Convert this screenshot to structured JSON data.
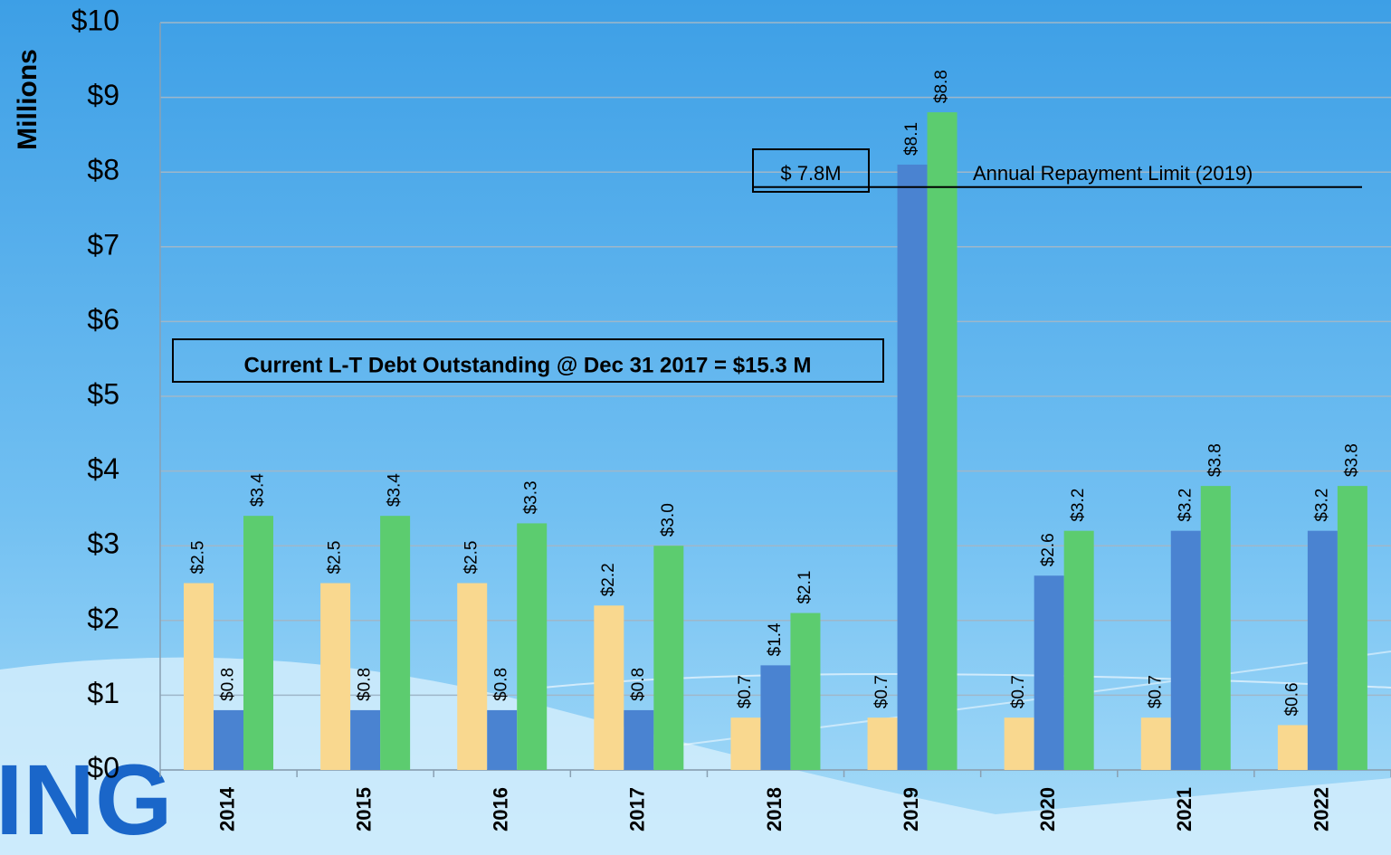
{
  "chart_data": {
    "type": "bar",
    "y_axis_label": "Millions",
    "categories": [
      "2014",
      "2015",
      "2016",
      "2017",
      "2018",
      "2019",
      "2020",
      "2021",
      "2022"
    ],
    "series": [
      {
        "color": "#f9d88f",
        "values": [
          2.5,
          2.5,
          2.5,
          2.2,
          0.7,
          0.7,
          0.7,
          0.7,
          0.6
        ],
        "value_labels": [
          "$2.5",
          "$2.5",
          "$2.5",
          "$2.2",
          "$0.7",
          "$0.7",
          "$0.7",
          "$0.7",
          "$0.6"
        ]
      },
      {
        "color": "#4a83d1",
        "values": [
          0.8,
          0.8,
          0.8,
          0.8,
          1.4,
          8.1,
          2.6,
          3.2,
          3.2
        ],
        "value_labels": [
          "$0.8",
          "$0.8",
          "$0.8",
          "$0.8",
          "$1.4",
          "$8.1",
          "$2.6",
          "$3.2",
          "$3.2"
        ]
      },
      {
        "color": "#5ccc6f",
        "values": [
          3.4,
          3.4,
          3.3,
          3.0,
          2.1,
          8.8,
          3.2,
          3.8,
          3.8
        ],
        "value_labels": [
          "$3.4",
          "$3.4",
          "$3.3",
          "$3.0",
          "$2.1",
          "$8.8",
          "$3.2",
          "$3.8",
          "$3.8"
        ]
      }
    ],
    "ylim": [
      0,
      10
    ],
    "yticks": [
      {
        "value": 0,
        "label": "$0"
      },
      {
        "value": 1,
        "label": "$1"
      },
      {
        "value": 2,
        "label": "$2"
      },
      {
        "value": 3,
        "label": "$3"
      },
      {
        "value": 4,
        "label": "$4"
      },
      {
        "value": 5,
        "label": "$5"
      },
      {
        "value": 6,
        "label": "$6"
      },
      {
        "value": 7,
        "label": "$7"
      },
      {
        "value": 8,
        "label": "$8"
      },
      {
        "value": 9,
        "label": "$9"
      },
      {
        "value": 10,
        "label": "$10"
      }
    ],
    "grid": true,
    "repayment_limit": {
      "value": 7.8,
      "label": "$ 7.8M",
      "text": "Annual Repayment Limit (2019)"
    },
    "annotation": "Current L-T Debt Outstanding @ Dec 31 2017 = $15.3 M",
    "logo_text": "ING"
  }
}
